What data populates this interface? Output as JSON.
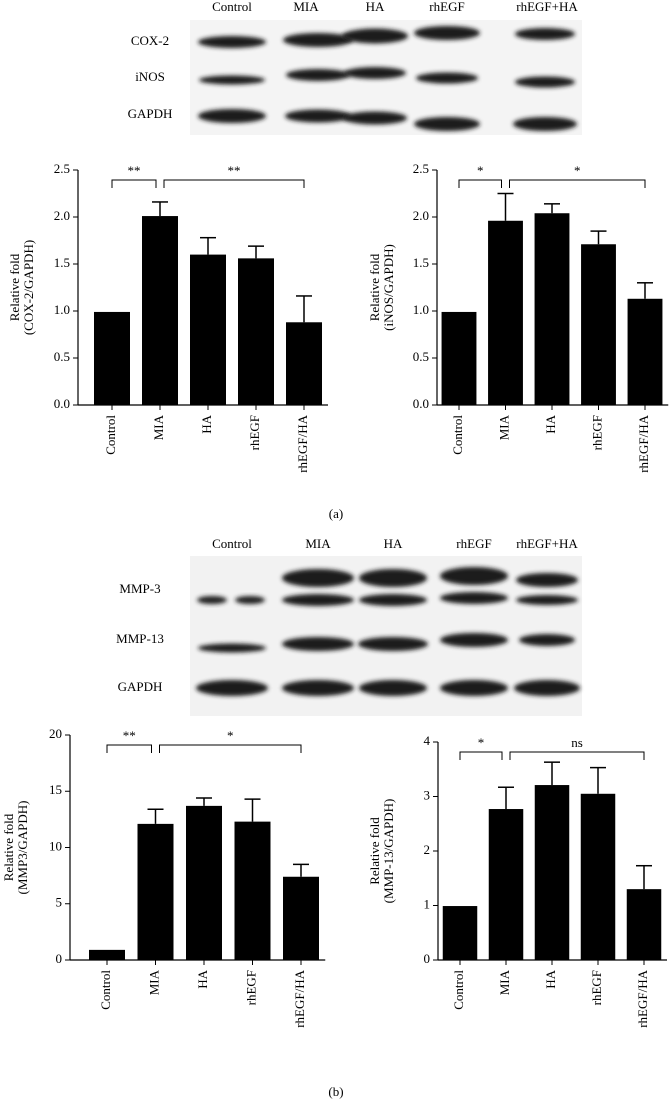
{
  "blots": [
    {
      "lanes": [
        "Control",
        "MIA",
        "HA",
        "rhEGF",
        "rhEGF+HA"
      ],
      "rows": [
        "COX-2",
        "iNOS",
        "GAPDH"
      ],
      "panel": "(a)"
    },
    {
      "lanes": [
        "Control",
        "MIA",
        "HA",
        "rhEGF",
        "rhEGF+HA"
      ],
      "rows": [
        "MMP-3",
        "MMP-13",
        "GAPDH"
      ],
      "panel": "(b)"
    }
  ],
  "chart_data": [
    {
      "type": "bar",
      "ylabel": [
        "Relative fold",
        "(COX-2/GAPDH)"
      ],
      "categories": [
        "Control",
        "MIA",
        "HA",
        "rhEGF",
        "rhEGF/HA"
      ],
      "values": [
        0.99,
        2.01,
        1.6,
        1.56,
        0.88
      ],
      "errors": [
        0,
        0.15,
        0.18,
        0.13,
        0.28
      ],
      "color": "#000000",
      "ylim": [
        0,
        2.5
      ],
      "yticks": [
        {
          "value": 0,
          "label": "0.0"
        },
        {
          "value": 0.5,
          "label": "0.5"
        },
        {
          "value": 1,
          "label": "1.0"
        },
        {
          "value": 1.5,
          "label": "1.5"
        },
        {
          "value": 2,
          "label": "2.0"
        },
        {
          "value": 2.5,
          "label": "2.5"
        }
      ],
      "annotations": [
        {
          "text": "**",
          "between": [
            "Control",
            "MIA"
          ]
        },
        {
          "text": "**",
          "between": [
            "MIA",
            "rhEGF/HA"
          ]
        }
      ]
    },
    {
      "type": "bar",
      "ylabel": [
        "Relative fold",
        "(iNOS/GAPDH)"
      ],
      "categories": [
        "Control",
        "MIA",
        "HA",
        "rhEGF",
        "rhEGF/HA"
      ],
      "values": [
        0.99,
        1.96,
        2.04,
        1.71,
        1.13
      ],
      "errors": [
        0,
        0.29,
        0.1,
        0.14,
        0.17
      ],
      "color": "#000000",
      "ylim": [
        0,
        2.5
      ],
      "yticks": [
        {
          "value": 0,
          "label": "0.0"
        },
        {
          "value": 0.5,
          "label": "0.5"
        },
        {
          "value": 1,
          "label": "1.0"
        },
        {
          "value": 1.5,
          "label": "1.5"
        },
        {
          "value": 2,
          "label": "2.0"
        },
        {
          "value": 2.5,
          "label": "2.5"
        }
      ],
      "annotations": [
        {
          "text": "*",
          "between": [
            "Control",
            "MIA"
          ]
        },
        {
          "text": "*",
          "between": [
            "MIA",
            "rhEGF/HA"
          ]
        }
      ]
    },
    {
      "type": "bar",
      "ylabel": [
        "Relative fold",
        "(MMP3/GAPDH)"
      ],
      "categories": [
        "Control",
        "MIA",
        "HA",
        "rhEGF",
        "rhEGF/HA"
      ],
      "values": [
        0.9,
        12.1,
        13.7,
        12.3,
        7.4
      ],
      "errors": [
        0,
        1.3,
        0.7,
        2.0,
        1.1
      ],
      "color": "#000000",
      "ylim": [
        0,
        20
      ],
      "yticks": [
        0,
        5,
        10,
        15,
        20
      ],
      "annotations": [
        {
          "text": "**",
          "between": [
            "Control",
            "MIA"
          ]
        },
        {
          "text": "*",
          "between": [
            "MIA",
            "rhEGF/HA"
          ]
        }
      ]
    },
    {
      "type": "bar",
      "ylabel": [
        "Relative fold",
        "(MMP-13/GAPDH)"
      ],
      "categories": [
        "Control",
        "MIA",
        "HA",
        "rhEGF",
        "rhEGF/HA"
      ],
      "values": [
        0.99,
        2.77,
        3.21,
        3.05,
        1.3
      ],
      "errors": [
        0,
        0.4,
        0.42,
        0.48,
        0.43
      ],
      "color": "#000000",
      "ylim": [
        0,
        4
      ],
      "yticks": [
        0,
        1,
        2,
        3,
        4
      ],
      "annotations": [
        {
          "text": "*",
          "between": [
            "Control",
            "MIA"
          ]
        },
        {
          "text": "ns",
          "between": [
            "MIA",
            "rhEGF/HA"
          ]
        }
      ]
    }
  ]
}
